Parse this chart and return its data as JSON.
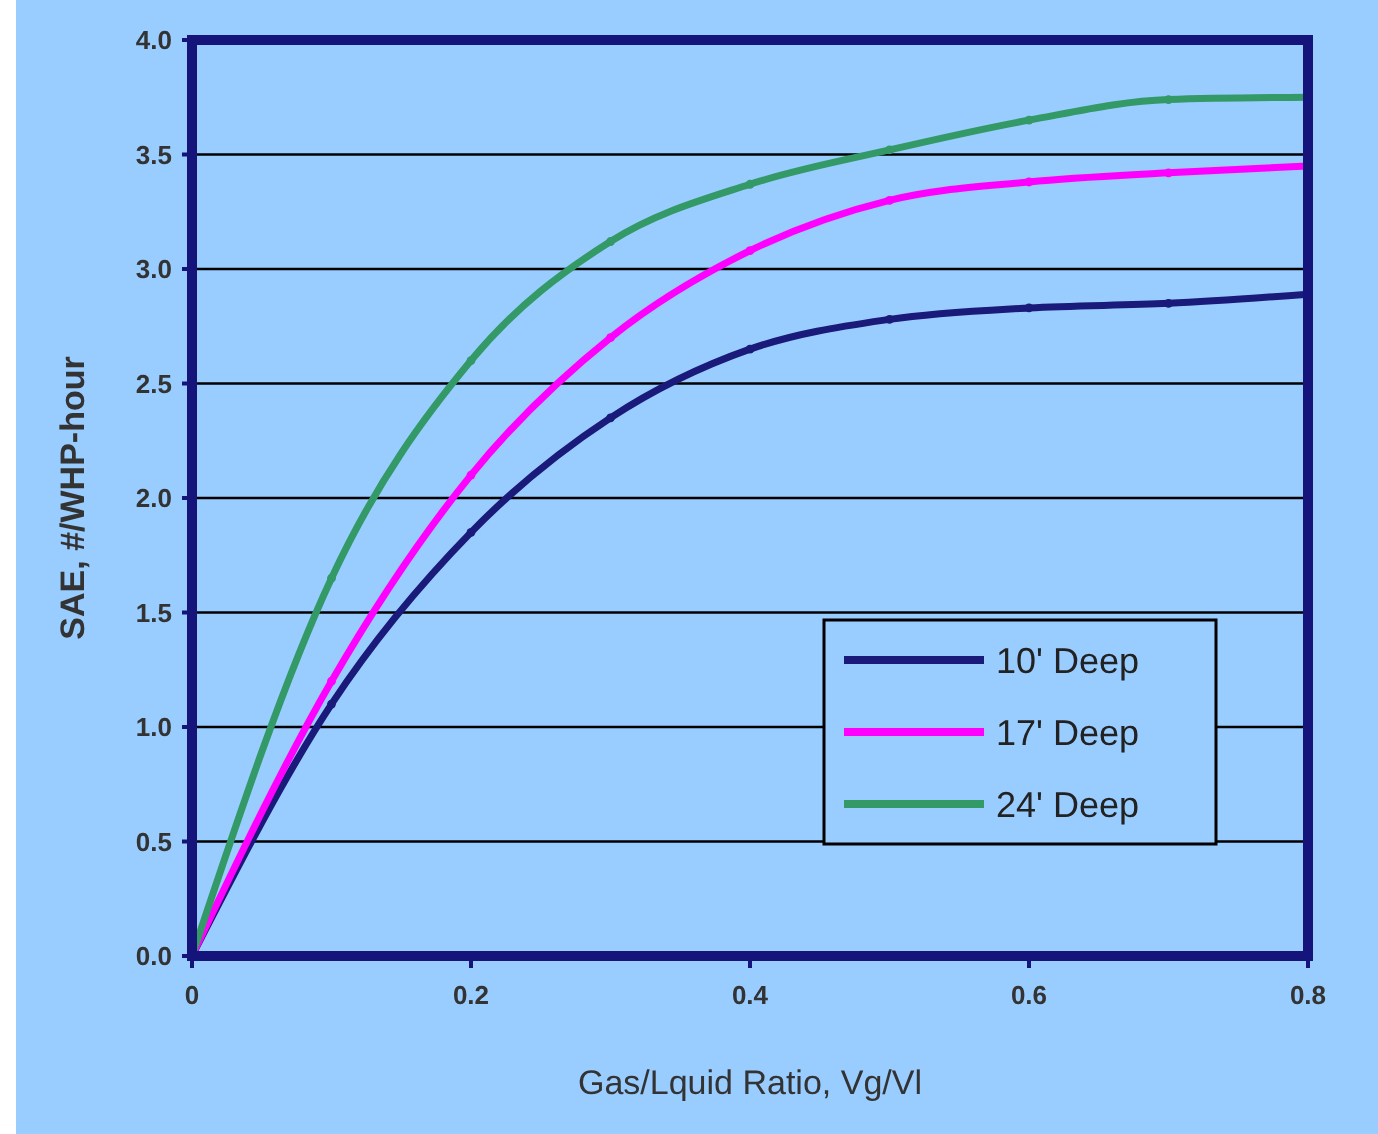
{
  "chart_data": {
    "type": "line",
    "xlabel": "Gas/Lquid Ratio, Vg/Vl",
    "ylabel": "SAE, #/WHP-hour",
    "x": [
      0,
      0.1,
      0.2,
      0.3,
      0.4,
      0.5,
      0.6,
      0.7,
      0.8
    ],
    "xlim": [
      0,
      0.8
    ],
    "xticks": [
      0,
      0.2,
      0.4,
      0.6,
      0.8
    ],
    "ylim": [
      0,
      4
    ],
    "yticks": [
      {
        "value": 0,
        "label": "0.0"
      },
      0.5,
      {
        "value": 1,
        "label": "1.0"
      },
      1.5,
      {
        "value": 2,
        "label": "2.0"
      },
      2.5,
      {
        "value": 3,
        "label": "3.0"
      },
      3.5,
      {
        "value": 4,
        "label": "4.0"
      }
    ],
    "grid": "y",
    "legend": "right",
    "marker": "circle",
    "line_style": "solid",
    "series": [
      {
        "name": "10' Deep",
        "color": "#1a1a7a",
        "values": [
          0,
          1.1,
          1.85,
          2.35,
          2.65,
          2.78,
          2.83,
          2.85,
          2.89
        ]
      },
      {
        "name": "17' Deep",
        "color": "#ff00ff",
        "values": [
          0,
          1.2,
          2.1,
          2.7,
          3.08,
          3.3,
          3.38,
          3.42,
          3.45
        ]
      },
      {
        "name": "24' Deep",
        "color": "#339966",
        "values": [
          0,
          1.65,
          2.6,
          3.12,
          3.37,
          3.52,
          3.65,
          3.74,
          3.75
        ]
      }
    ]
  }
}
